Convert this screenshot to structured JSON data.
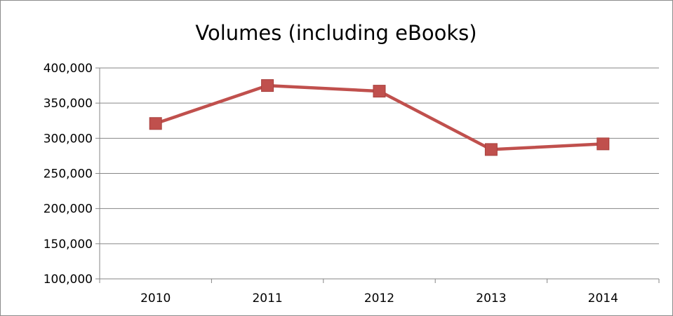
{
  "chart_data": {
    "type": "line",
    "title": "Volumes (including eBooks)",
    "xlabel": "",
    "ylabel": "",
    "categories": [
      "2010",
      "2011",
      "2012",
      "2013",
      "2014"
    ],
    "series": [
      {
        "values": [
          321000,
          375000,
          367000,
          284000,
          292000
        ]
      }
    ],
    "ylim": [
      100000,
      400000
    ],
    "yticks": [
      100000,
      150000,
      200000,
      250000,
      300000,
      350000,
      400000
    ],
    "ytick_labels": [
      "100,000",
      "150,000",
      "200,000",
      "250,000",
      "300,000",
      "350,000",
      "400,000"
    ],
    "grid": true,
    "legend": "none",
    "colors": {
      "series": "#c0504d",
      "grid": "#868686",
      "axis": "#868686"
    },
    "marker": "square"
  }
}
